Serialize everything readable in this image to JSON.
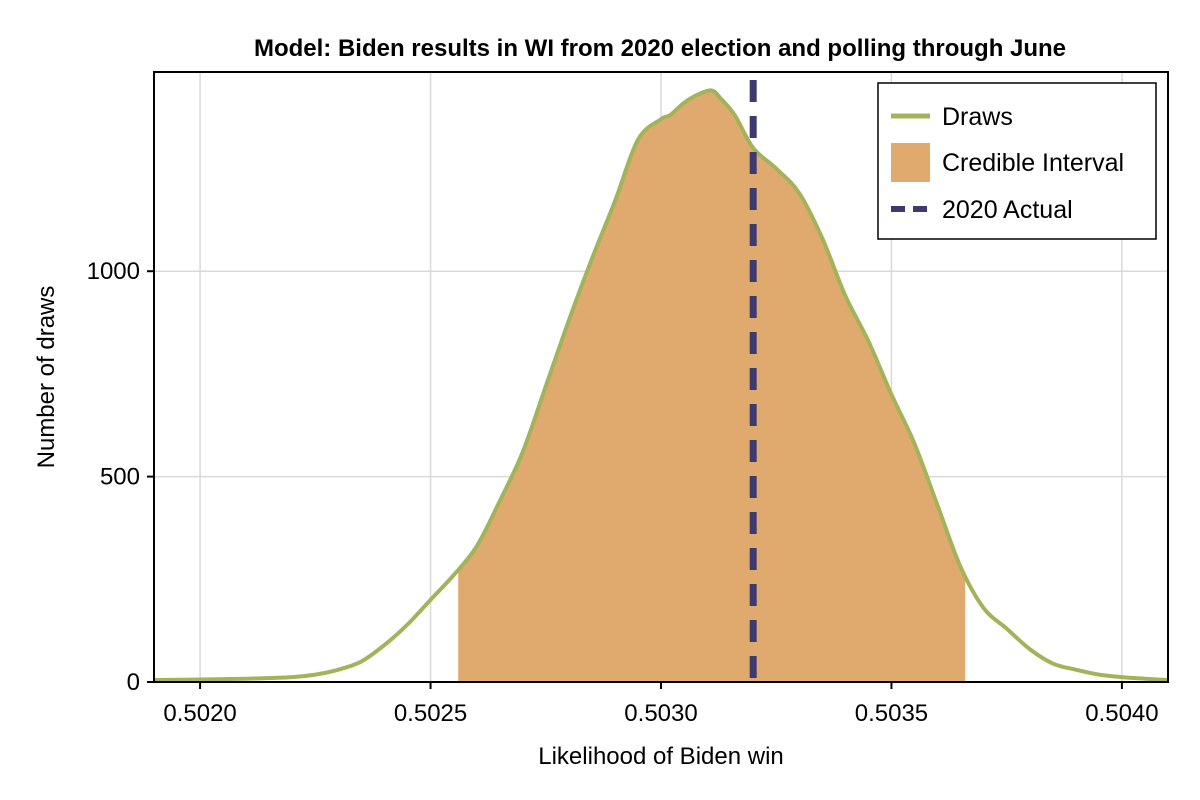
{
  "chart_data": {
    "type": "area",
    "title": "Model: Biden results in WI from 2020 election and polling through June",
    "xlabel": "Likelihood of Biden win",
    "ylabel": "Number of draws",
    "xlim": [
      0.5019,
      0.5041
    ],
    "ylim": [
      0,
      1485
    ],
    "xticks": [
      0.502,
      0.5025,
      0.503,
      0.5035,
      0.504
    ],
    "xtick_labels": [
      "0.5020",
      "0.5025",
      "0.5030",
      "0.5035",
      "0.5040"
    ],
    "yticks": [
      0,
      500,
      1000
    ],
    "ytick_labels": [
      "0",
      "500",
      "1000"
    ],
    "grid": true,
    "legend_position": "top-right",
    "colors": {
      "draws": "#a3b35b",
      "credible_interval": "#e0a96e",
      "actual": "#3c3a6e"
    },
    "series": [
      {
        "name": "Draws",
        "x": [
          0.5019,
          0.502,
          0.5021,
          0.5022,
          0.50225,
          0.5023,
          0.50235,
          0.5024,
          0.50245,
          0.5025,
          0.50255,
          0.5026,
          0.50265,
          0.5027,
          0.50275,
          0.5028,
          0.50285,
          0.5029,
          0.50295,
          0.503,
          0.50302,
          0.50305,
          0.50308,
          0.50311,
          0.50313,
          0.50316,
          0.5032,
          0.50325,
          0.5033,
          0.50335,
          0.5034,
          0.50345,
          0.5035,
          0.50355,
          0.5036,
          0.50365,
          0.5037,
          0.50375,
          0.5038,
          0.50385,
          0.5039,
          0.50395,
          0.504,
          0.50405,
          0.5041
        ],
        "y": [
          5,
          6,
          8,
          12,
          18,
          30,
          50,
          90,
          140,
          200,
          260,
          330,
          440,
          560,
          720,
          880,
          1030,
          1170,
          1320,
          1370,
          1380,
          1410,
          1430,
          1440,
          1420,
          1380,
          1300,
          1250,
          1190,
          1080,
          940,
          830,
          700,
          580,
          430,
          280,
          180,
          130,
          80,
          45,
          30,
          18,
          12,
          8,
          5
        ]
      }
    ],
    "credible_interval": {
      "name": "Credible Interval",
      "x_from": 0.50256,
      "x_to": 0.50366
    },
    "reference_line": {
      "name": "2020 Actual",
      "x": 0.5032
    }
  }
}
